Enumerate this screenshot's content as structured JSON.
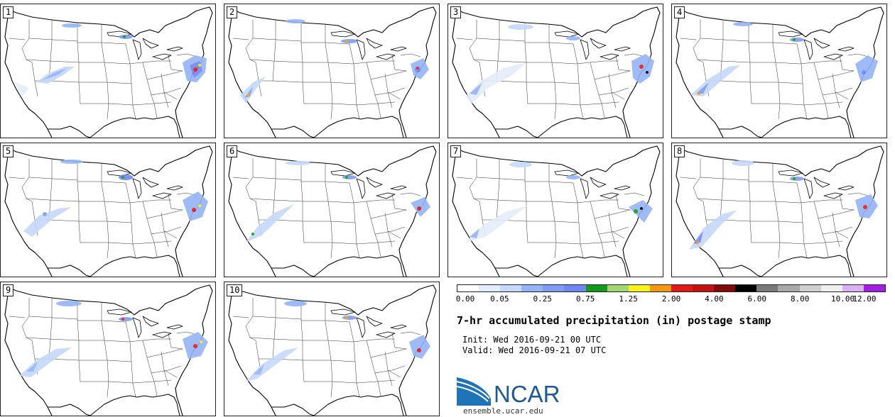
{
  "panels": [
    "1",
    "2",
    "3",
    "4",
    "5",
    "6",
    "7",
    "8",
    "9",
    "10"
  ],
  "colorbar": {
    "colors": [
      "#ffffff",
      "#e4edfc",
      "#c6d9fa",
      "#95b4f7",
      "#7f9cf5",
      "#6f87f2",
      "#129a20",
      "#a3d672",
      "#f7f21a",
      "#f59a0c",
      "#e31a1a",
      "#c51212",
      "#820a0a",
      "#000000",
      "#7a7a7a",
      "#a9a9a9",
      "#cfcfcf",
      "#efefef",
      "#dcb0f5",
      "#a21fe4"
    ],
    "labels": [
      "0.00",
      "0.05",
      "0.25",
      "0.75",
      "1.25",
      "2.00",
      "4.00",
      "6.00",
      "8.00",
      "10.00",
      "12.00"
    ],
    "label_slots": [
      0,
      2,
      4,
      6,
      8,
      10,
      12,
      14,
      16,
      18,
      20
    ]
  },
  "title": "7-hr accumulated precipitation (in) postage stamp",
  "init": "Init: Wed 2016-09-21 00 UTC",
  "valid": "Valid: Wed 2016-09-21 07 UTC",
  "logo": {
    "text": "NCAR",
    "url": "ensemble.ucar.edu"
  }
}
